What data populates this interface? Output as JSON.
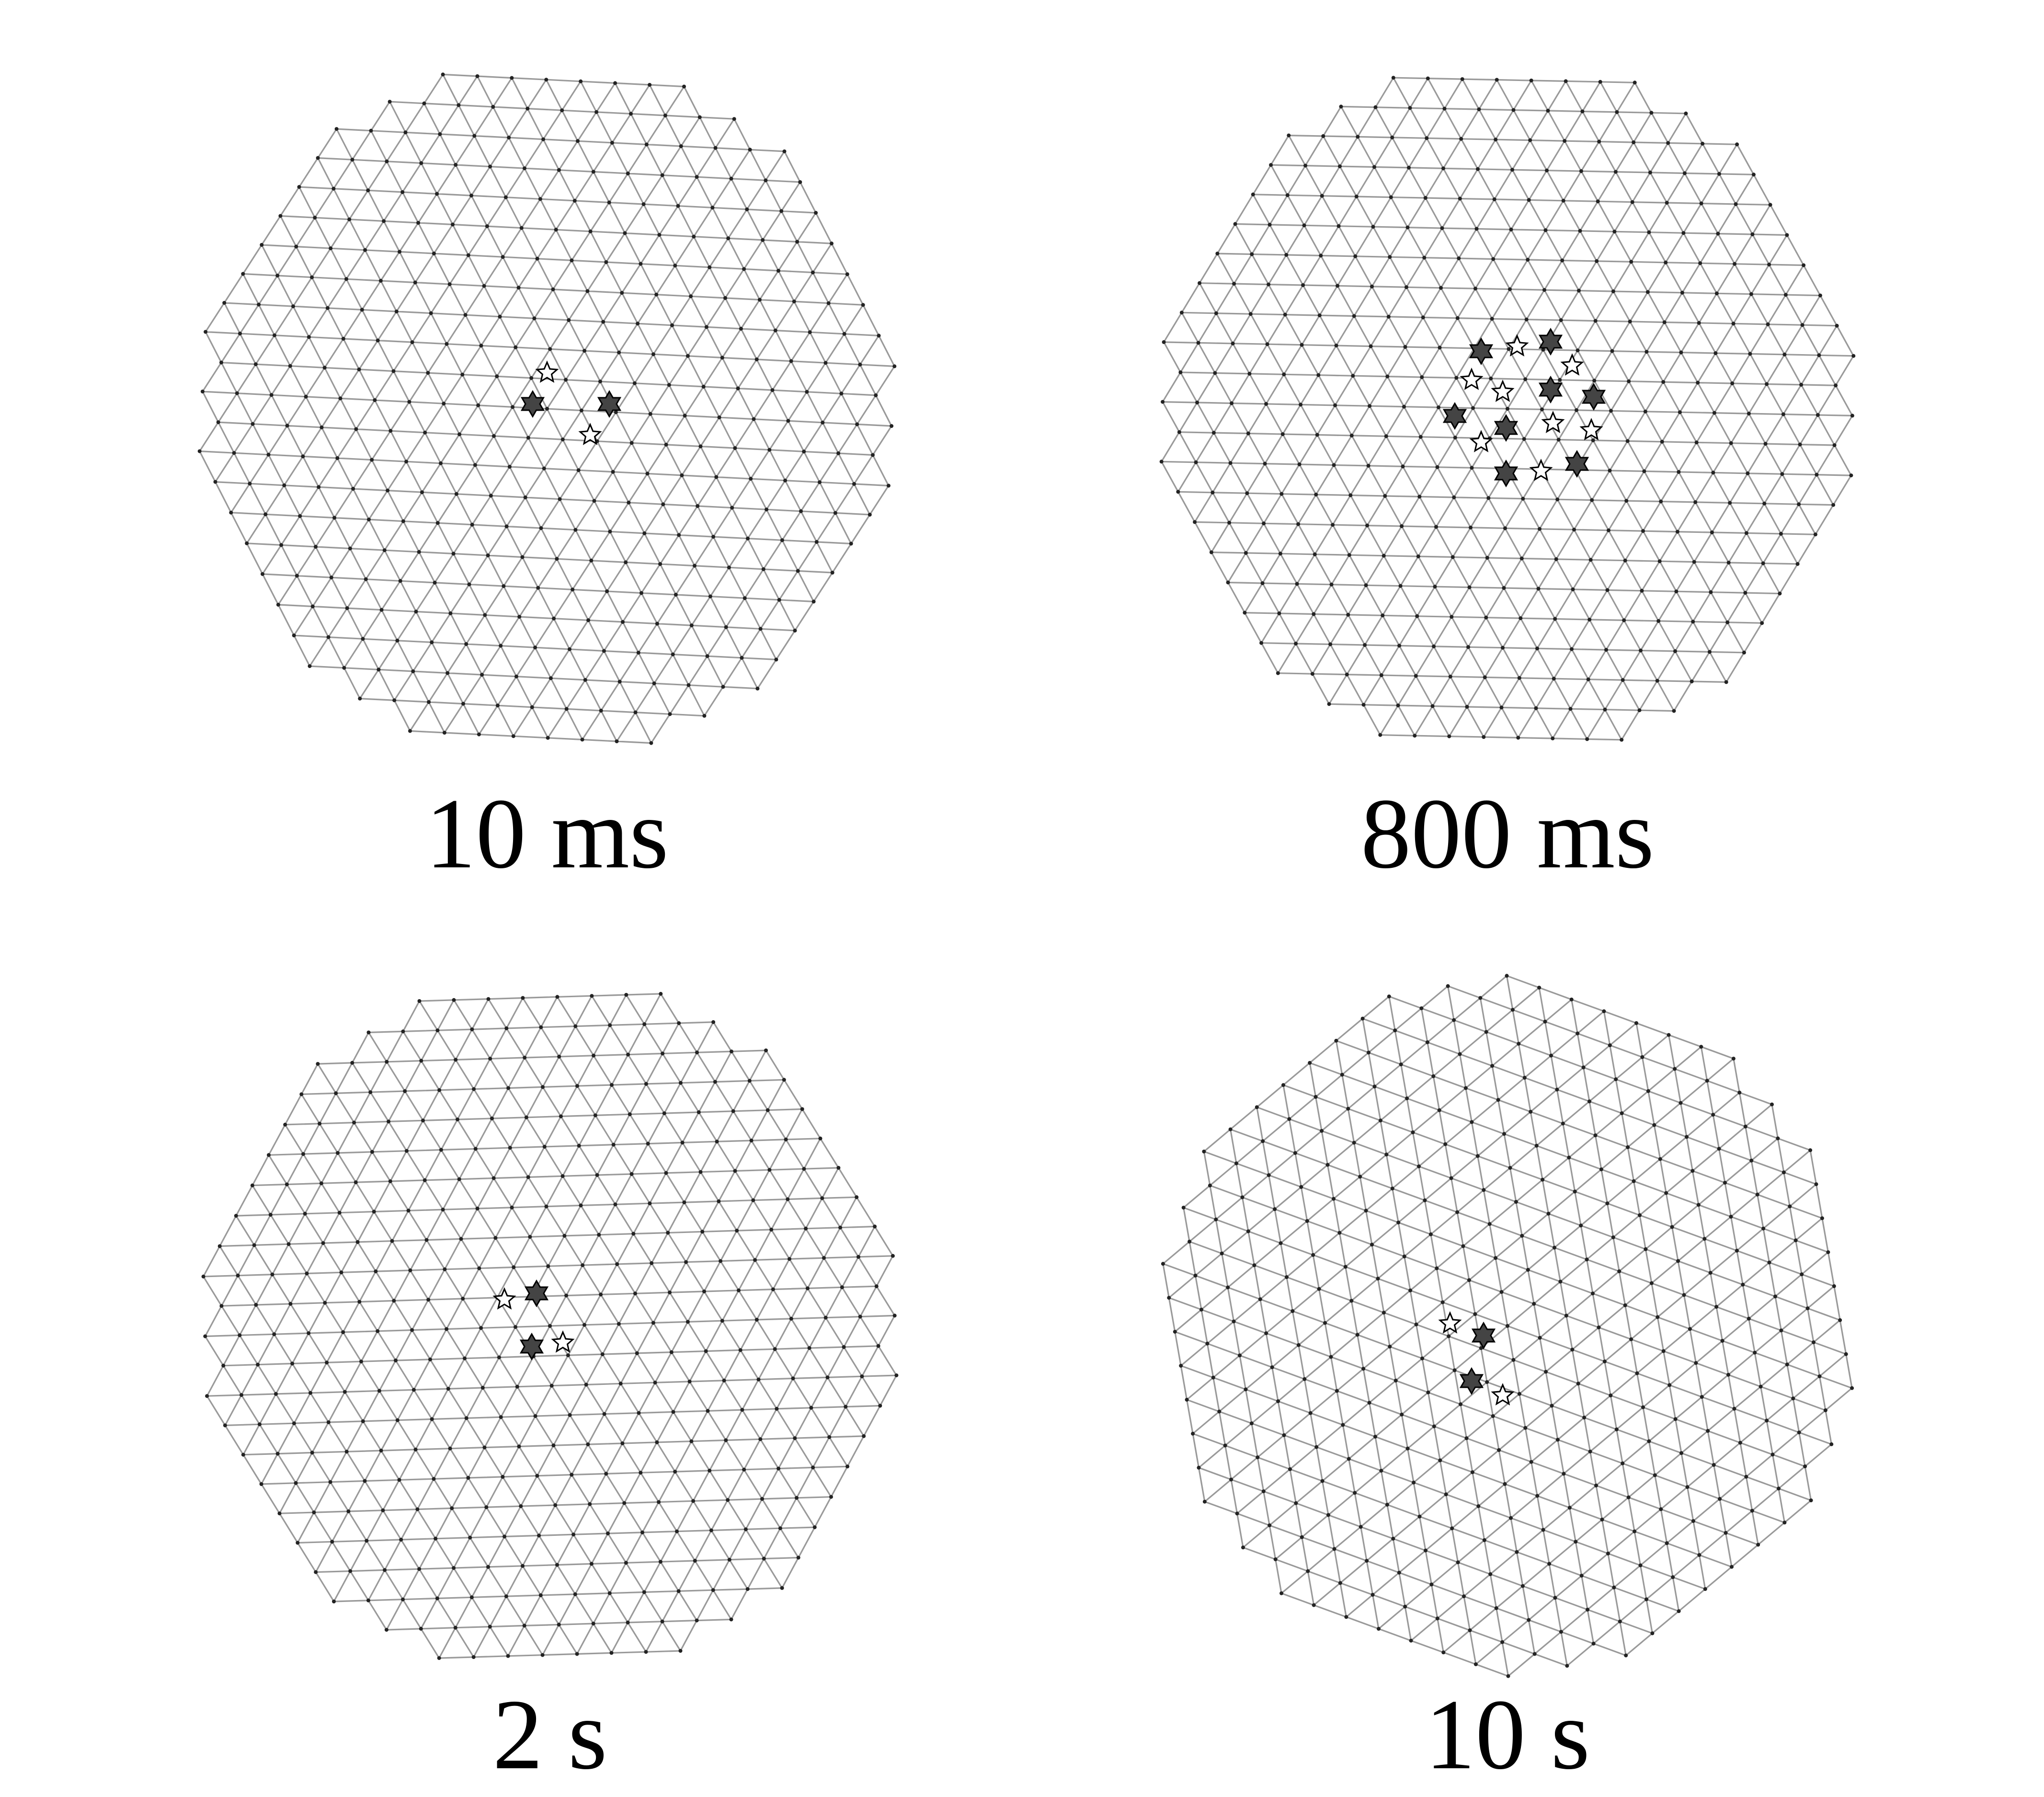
{
  "panels": [
    {
      "label": "10 ms"
    },
    {
      "label": "800 ms"
    },
    {
      "label": "2 s"
    },
    {
      "label": "10 s"
    }
  ]
}
